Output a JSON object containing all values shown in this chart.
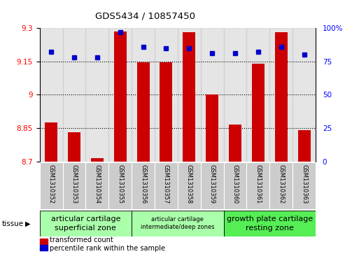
{
  "title": "GDS5434 / 10857450",
  "samples": [
    "GSM1310352",
    "GSM1310353",
    "GSM1310354",
    "GSM1310355",
    "GSM1310356",
    "GSM1310357",
    "GSM1310358",
    "GSM1310359",
    "GSM1310360",
    "GSM1310361",
    "GSM1310362",
    "GSM1310363"
  ],
  "transformed_count": [
    8.875,
    8.83,
    8.715,
    9.285,
    9.145,
    9.145,
    9.28,
    9.0,
    8.865,
    9.14,
    9.28,
    8.84
  ],
  "percentile_rank": [
    82,
    78,
    78,
    97,
    86,
    85,
    85,
    81,
    81,
    82,
    86,
    80
  ],
  "ylim_left": [
    8.7,
    9.3
  ],
  "ylim_right": [
    0,
    100
  ],
  "yticks_left": [
    8.7,
    8.85,
    9.0,
    9.15,
    9.3
  ],
  "yticks_right": [
    0,
    25,
    50,
    75,
    100
  ],
  "ytick_labels_left": [
    "8.7",
    "8.85",
    "9",
    "9.15",
    "9.3"
  ],
  "ytick_labels_right": [
    "0",
    "25",
    "50",
    "75",
    "100%"
  ],
  "hlines": [
    8.85,
    9.0,
    9.15
  ],
  "bar_color": "#cc0000",
  "dot_color": "#0000cc",
  "tissue_groups": [
    {
      "label": "articular cartilage\nsuperficial zone",
      "start": 0,
      "end": 3,
      "color": "#aaffaa",
      "fontsize": 8
    },
    {
      "label": "articular cartilage\nintermediate/deep zones",
      "start": 4,
      "end": 7,
      "color": "#aaffaa",
      "fontsize": 6
    },
    {
      "label": "growth plate cartilage\nresting zone",
      "start": 8,
      "end": 11,
      "color": "#55ee55",
      "fontsize": 8
    }
  ],
  "legend_bar_label": "transformed count",
  "legend_dot_label": "percentile rank within the sample",
  "tissue_label": "tissue",
  "bar_width": 0.55,
  "sample_bg_color": "#cccccc",
  "plot_bg_color": "#ffffff"
}
